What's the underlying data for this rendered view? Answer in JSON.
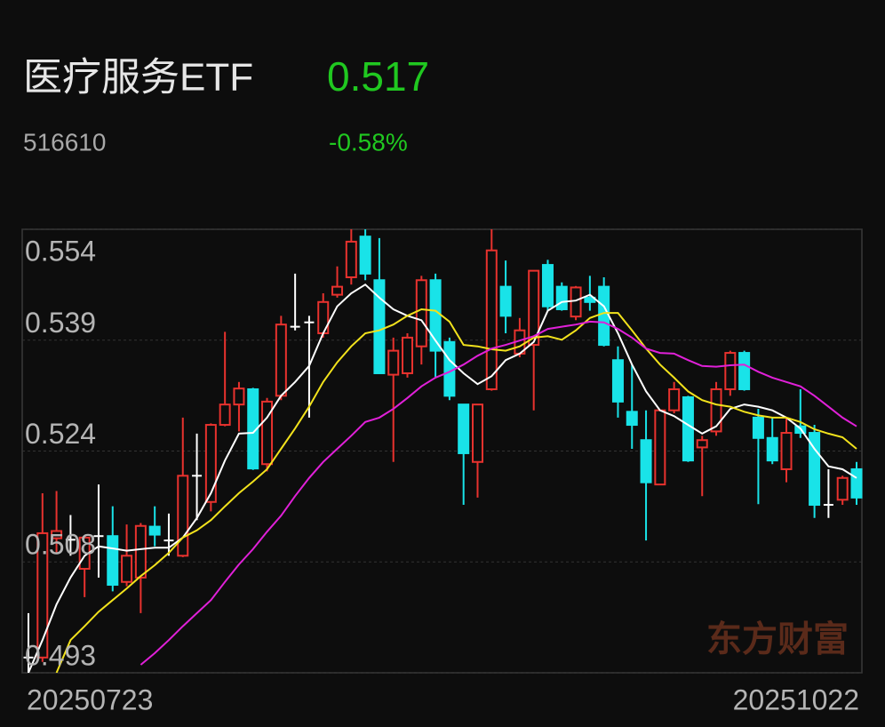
{
  "header": {
    "title": "医疗服务ETF",
    "price": 0.517,
    "code": "516610",
    "change": "-0.58%"
  },
  "watermark": "东方财富",
  "chart_data": {
    "type": "candlestick",
    "ylim": [
      0.493,
      0.554
    ],
    "yticks": [
      0.554,
      {
        "value": 0.53875,
        "label": "0.539"
      },
      {
        "value": 0.5235,
        "label": "0.524"
      },
      {
        "value": 0.50825,
        "label": "0.508"
      },
      0.493
    ],
    "xtick_labels": [
      "20250723",
      "20251022"
    ],
    "grid": true,
    "up_color": "#e8322e",
    "down_color": "#19e3e8",
    "flat_color": "#ffffff",
    "open": [
      0.4951,
      0.4951,
      0.5115,
      0.5113,
      0.5073,
      0.5118,
      0.5118,
      0.5055,
      0.5061,
      0.5131,
      0.5112,
      0.5091,
      0.5201,
      0.5165,
      0.5271,
      0.5299,
      0.532,
      0.5217,
      0.5311,
      0.5406,
      0.5412,
      0.5397,
      0.545,
      0.5474,
      0.553,
      0.547,
      0.534,
      0.5342,
      0.5379,
      0.547,
      0.5385,
      0.5299,
      0.522,
      0.532,
      0.5461,
      0.5369,
      0.5381,
      0.5491,
      0.5461,
      0.542,
      0.5446,
      0.5461,
      0.536,
      0.5289,
      0.525,
      0.5189,
      0.5291,
      0.5309,
      0.524,
      0.5262,
      0.532,
      0.537,
      0.5281,
      0.5253,
      0.521,
      0.5269,
      0.526,
      0.5161,
      0.5168,
      0.521
    ],
    "high": [
      0.5012,
      0.5177,
      0.518,
      0.5147,
      0.5118,
      0.5189,
      0.5159,
      0.5134,
      0.5136,
      0.5159,
      0.5149,
      0.5281,
      0.5259,
      0.5273,
      0.5399,
      0.533,
      0.5322,
      0.5308,
      0.5421,
      0.5479,
      0.5421,
      0.5452,
      0.5489,
      0.554,
      0.554,
      0.5528,
      0.5391,
      0.5397,
      0.5476,
      0.5479,
      0.5391,
      0.5299,
      0.5299,
      0.554,
      0.5497,
      0.5418,
      0.5483,
      0.5498,
      0.5467,
      0.5462,
      0.5476,
      0.5474,
      0.5379,
      0.5354,
      0.5291,
      0.5291,
      0.533,
      0.5311,
      0.5256,
      0.533,
      0.5373,
      0.5373,
      0.5293,
      0.5281,
      0.5281,
      0.532,
      0.5271,
      0.521,
      0.5201,
      0.522
    ],
    "low": [
      0.493,
      0.4945,
      0.5095,
      0.5091,
      0.5034,
      0.5061,
      0.5042,
      0.5049,
      0.5012,
      0.5104,
      0.5091,
      0.5089,
      0.514,
      0.5152,
      0.5269,
      0.5262,
      0.5209,
      0.5207,
      0.5305,
      0.5401,
      0.5281,
      0.5391,
      0.5446,
      0.5464,
      0.547,
      0.5342,
      0.522,
      0.5336,
      0.5354,
      0.5336,
      0.5305,
      0.5161,
      0.5171,
      0.5318,
      0.5397,
      0.5364,
      0.5291,
      0.5428,
      0.5428,
      0.5415,
      0.5428,
      0.5379,
      0.5281,
      0.5238,
      0.5112,
      0.5189,
      0.5287,
      0.522,
      0.5173,
      0.5256,
      0.5311,
      0.5318,
      0.5162,
      0.5217,
      0.5192,
      0.5253,
      0.5143,
      0.5143,
      0.5161,
      0.5161
    ],
    "close": [
      0.4951,
      0.5122,
      0.5125,
      0.5113,
      0.5116,
      0.5118,
      0.5051,
      0.5091,
      0.5132,
      0.512,
      0.5112,
      0.5201,
      0.5201,
      0.5271,
      0.5299,
      0.5321,
      0.5211,
      0.5303,
      0.5409,
      0.5406,
      0.5412,
      0.544,
      0.5461,
      0.5523,
      0.5479,
      0.5342,
      0.5373,
      0.5391,
      0.547,
      0.5373,
      0.5311,
      0.5232,
      0.5299,
      0.5511,
      0.5421,
      0.5401,
      0.5483,
      0.5434,
      0.543,
      0.546,
      0.544,
      0.5381,
      0.5303,
      0.5271,
      0.5192,
      0.5291,
      0.532,
      0.5222,
      0.525,
      0.532,
      0.537,
      0.532,
      0.5253,
      0.5222,
      0.526,
      0.526,
      0.5161,
      0.5161,
      0.5198,
      0.5171
    ],
    "lines": [
      {
        "color": "#ffffff",
        "values": [
          0.493,
          0.4975,
          0.5024,
          0.5061,
          0.5091,
          0.5104,
          0.5101,
          0.5098,
          0.51,
          0.5102,
          0.5102,
          0.5116,
          0.5143,
          0.5177,
          0.5222,
          0.5259,
          0.526,
          0.5281,
          0.5311,
          0.533,
          0.5352,
          0.5397,
          0.5434,
          0.5452,
          0.5464,
          0.5446,
          0.543,
          0.5421,
          0.5415,
          0.5387,
          0.536,
          0.5342,
          0.5327,
          0.5338,
          0.536,
          0.5369,
          0.5385,
          0.5428,
          0.544,
          0.5442,
          0.545,
          0.5434,
          0.5397,
          0.5354,
          0.5317,
          0.5291,
          0.5283,
          0.5271,
          0.5259,
          0.5269,
          0.5293,
          0.5299,
          0.5296,
          0.5291,
          0.5281,
          0.5266,
          0.5238,
          0.5214,
          0.521,
          0.5198
        ]
      },
      {
        "color": "#f2e21c",
        "values": [
          null,
          null,
          0.493,
          0.4975,
          0.4994,
          0.5014,
          0.503,
          0.5046,
          0.5063,
          0.5078,
          0.5095,
          0.5116,
          0.5126,
          0.514,
          0.5159,
          0.5177,
          0.5193,
          0.521,
          0.5238,
          0.5266,
          0.5296,
          0.533,
          0.5357,
          0.5379,
          0.5397,
          0.5401,
          0.5409,
          0.5421,
          0.543,
          0.5428,
          0.5413,
          0.5381,
          0.5379,
          0.5375,
          0.5373,
          0.5379,
          0.5391,
          0.5393,
          0.5388,
          0.5401,
          0.5418,
          0.5425,
          0.5425,
          0.5401,
          0.5376,
          0.5354,
          0.5336,
          0.5317,
          0.5305,
          0.5299,
          0.5296,
          0.5289,
          0.5284,
          0.5281,
          0.5281,
          0.5275,
          0.5265,
          0.5259,
          0.5254,
          0.5238
        ]
      },
      {
        "color": "#e020d8",
        "values": [
          null,
          null,
          null,
          null,
          null,
          null,
          null,
          null,
          0.4941,
          0.4957,
          0.4975,
          0.4994,
          0.5012,
          0.503,
          0.5055,
          0.5079,
          0.51,
          0.5124,
          0.5146,
          0.5173,
          0.5198,
          0.522,
          0.5238,
          0.5256,
          0.5275,
          0.5281,
          0.5293,
          0.5308,
          0.5324,
          0.5336,
          0.5344,
          0.5354,
          0.5366,
          0.5376,
          0.5381,
          0.5387,
          0.5393,
          0.5403,
          0.5406,
          0.5409,
          0.5413,
          0.5412,
          0.5403,
          0.5391,
          0.5376,
          0.537,
          0.5369,
          0.536,
          0.5352,
          0.5351,
          0.5353,
          0.5354,
          0.5344,
          0.5336,
          0.533,
          0.5324,
          0.5311,
          0.5296,
          0.5281,
          0.5269
        ]
      }
    ]
  }
}
